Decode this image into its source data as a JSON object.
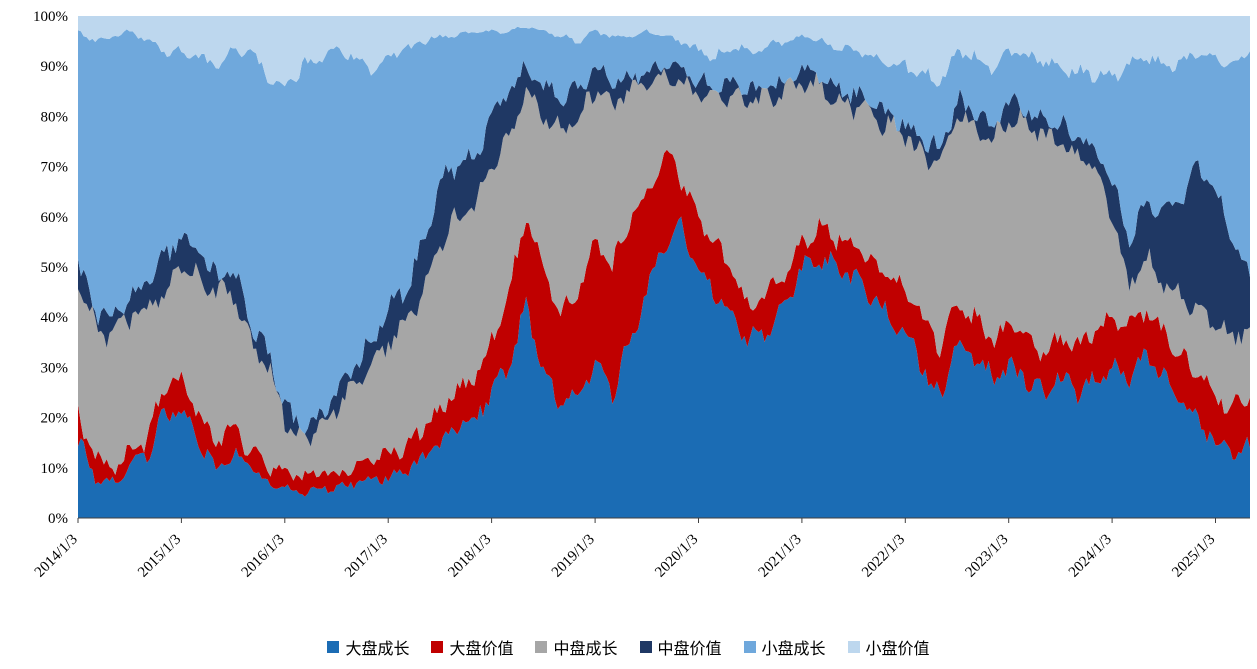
{
  "chart_data": {
    "type": "area",
    "stacked": true,
    "percent_stacked": true,
    "title": "",
    "xlabel": "",
    "ylabel": "",
    "ylim": [
      0,
      100
    ],
    "grid": false,
    "legend_position": "bottom",
    "yticks": [
      "0%",
      "10%",
      "20%",
      "30%",
      "40%",
      "50%",
      "60%",
      "70%",
      "80%",
      "90%",
      "100%"
    ],
    "ytick_values": [
      0,
      10,
      20,
      30,
      40,
      50,
      60,
      70,
      80,
      90,
      100
    ],
    "xticks": [
      "2014/1/3",
      "2015/1/3",
      "2016/1/3",
      "2017/1/3",
      "2018/1/3",
      "2019/1/3",
      "2020/1/3",
      "2021/1/3",
      "2022/1/3",
      "2023/1/3",
      "2024/1/3",
      "2025/1/3"
    ],
    "xtick_indices": [
      0,
      6,
      12,
      18,
      24,
      30,
      36,
      42,
      48,
      54,
      60,
      66
    ],
    "x": [
      "2014/1",
      "2014/3",
      "2014/5",
      "2014/7",
      "2014/9",
      "2014/11",
      "2015/1",
      "2015/3",
      "2015/5",
      "2015/7",
      "2015/9",
      "2015/11",
      "2016/1",
      "2016/3",
      "2016/5",
      "2016/7",
      "2016/9",
      "2016/11",
      "2017/1",
      "2017/3",
      "2017/5",
      "2017/7",
      "2017/9",
      "2017/11",
      "2018/1",
      "2018/3",
      "2018/5",
      "2018/7",
      "2018/9",
      "2018/11",
      "2019/1",
      "2019/3",
      "2019/5",
      "2019/7",
      "2019/9",
      "2019/11",
      "2020/1",
      "2020/3",
      "2020/5",
      "2020/7",
      "2020/9",
      "2020/11",
      "2021/1",
      "2021/3",
      "2021/5",
      "2021/7",
      "2021/9",
      "2021/11",
      "2022/1",
      "2022/3",
      "2022/5",
      "2022/7",
      "2022/9",
      "2022/11",
      "2023/1",
      "2023/3",
      "2023/5",
      "2023/7",
      "2023/9",
      "2023/11",
      "2024/1",
      "2024/3",
      "2024/5",
      "2024/7",
      "2024/9",
      "2024/11",
      "2025/1",
      "2025/3",
      "2025/5"
    ],
    "series": [
      {
        "name": "大盘成长",
        "color": "#1B6CB4",
        "values": [
          16,
          8,
          7,
          10,
          13,
          20,
          22,
          15,
          10,
          13,
          10,
          7,
          6,
          5,
          6,
          6,
          7,
          8,
          8,
          9,
          12,
          15,
          18,
          20,
          25,
          30,
          42,
          30,
          22,
          25,
          30,
          25,
          35,
          45,
          55,
          58,
          50,
          45,
          40,
          35,
          38,
          42,
          50,
          52,
          50,
          48,
          45,
          40,
          38,
          30,
          24,
          35,
          32,
          28,
          30,
          28,
          25,
          28,
          25,
          27,
          30,
          28,
          32,
          28,
          23,
          19,
          15,
          13,
          14
        ]
      },
      {
        "name": "大盘价值",
        "color": "#C00000",
        "values": [
          4,
          4,
          3,
          3,
          3,
          6,
          5,
          5,
          6,
          5,
          4,
          3,
          3,
          3,
          3,
          3,
          3,
          4,
          5,
          5,
          6,
          7,
          7,
          8,
          10,
          15,
          18,
          20,
          18,
          20,
          25,
          25,
          25,
          20,
          17,
          10,
          10,
          10,
          8,
          7,
          6,
          6,
          5,
          6,
          6,
          7,
          7,
          8,
          8,
          10,
          10,
          7,
          8,
          8,
          8,
          8,
          8,
          8,
          9,
          10,
          10,
          10,
          10,
          9,
          9,
          10,
          10,
          9,
          10
        ]
      },
      {
        "name": "中盘成长",
        "color": "#A6A6A6",
        "values": [
          27,
          26,
          26,
          27,
          26,
          19,
          23,
          28,
          29,
          27,
          21,
          20,
          11,
          7,
          9,
          13,
          16,
          18,
          22,
          24,
          27,
          33,
          35,
          34,
          35,
          30,
          25,
          30,
          38,
          35,
          30,
          32,
          25,
          22,
          16,
          19,
          25,
          28,
          37,
          41,
          40,
          37,
          32,
          28,
          28,
          27,
          28,
          30,
          30,
          32,
          36,
          38,
          38,
          39,
          42,
          42,
          43,
          39,
          38,
          33,
          20,
          8,
          10,
          10,
          12,
          12,
          13,
          14,
          14
        ]
      },
      {
        "name": "中盘价值",
        "color": "#1F3864",
        "values": [
          3,
          3,
          4,
          4,
          5,
          7,
          6,
          5,
          3,
          5,
          3,
          3,
          2,
          2,
          2,
          3,
          4,
          5,
          7,
          7,
          10,
          12,
          10,
          10,
          10,
          10,
          5,
          6,
          6,
          5,
          5,
          5,
          3,
          2,
          2,
          2,
          2,
          2,
          2,
          2,
          2,
          2,
          2,
          2,
          2,
          2,
          2,
          2,
          2,
          3,
          3,
          3,
          3,
          3,
          3,
          3,
          3,
          3,
          4,
          4,
          6,
          10,
          10,
          13,
          19,
          29,
          27,
          19,
          10
        ]
      },
      {
        "name": "小盘成长",
        "color": "#6FA8DC",
        "values": [
          47,
          54,
          56,
          53,
          48,
          41,
          37,
          39,
          42,
          43,
          55,
          55,
          63,
          73,
          72,
          68,
          62,
          55,
          50,
          48,
          40,
          29,
          26,
          25,
          17,
          12,
          8,
          11,
          12,
          10,
          7,
          9,
          8,
          8,
          6,
          6,
          6,
          7,
          7,
          8,
          8,
          8,
          7,
          7,
          8,
          9,
          10,
          11,
          12,
          13,
          14,
          10,
          11,
          12,
          10,
          11,
          12,
          12,
          13,
          14,
          22,
          34,
          30,
          30,
          28,
          23,
          27,
          35,
          45
        ]
      },
      {
        "name": "小盘价值",
        "color": "#BDD7EE",
        "values": [
          3,
          5,
          4,
          3,
          5,
          7,
          7,
          8,
          10,
          7,
          7,
          12,
          15,
          10,
          8,
          7,
          8,
          10,
          8,
          7,
          5,
          4,
          4,
          3,
          3,
          3,
          2,
          3,
          4,
          5,
          3,
          4,
          4,
          3,
          4,
          5,
          7,
          8,
          6,
          7,
          6,
          5,
          4,
          5,
          6,
          7,
          8,
          9,
          10,
          12,
          13,
          7,
          8,
          10,
          7,
          8,
          9,
          10,
          11,
          12,
          12,
          10,
          8,
          10,
          9,
          7,
          8,
          10,
          7
        ]
      }
    ],
    "axis_color": "#404040",
    "text_color": "#000000"
  }
}
